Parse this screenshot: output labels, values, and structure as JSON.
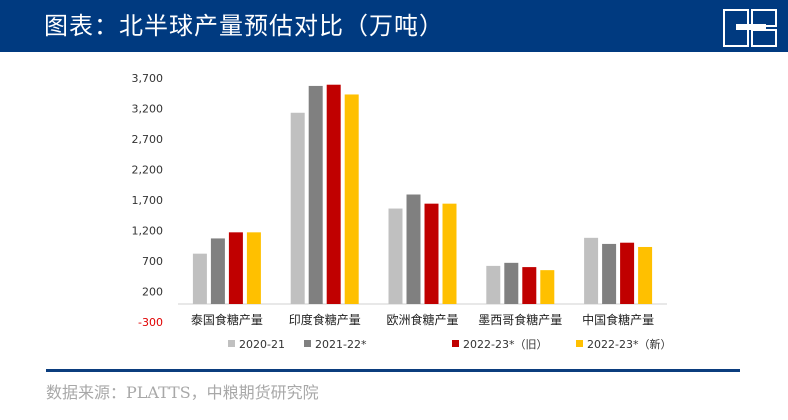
{
  "header": {
    "title": "图表：北半球产量预估对比（万吨）"
  },
  "source": {
    "text": "数据来源：PLATTS，中粮期货研究院"
  },
  "chart_data": {
    "type": "bar",
    "categories": [
      "泰国食糖产量",
      "印度食糖产量",
      "欧洲食糖产量",
      "墨西哥食糖产量",
      "中国食糖产量"
    ],
    "series": [
      {
        "name": "2020-21",
        "color": "#c0c0c0",
        "values": [
          820,
          3130,
          1560,
          620,
          1080
        ]
      },
      {
        "name": "2021-22*",
        "color": "#808080",
        "values": [
          1070,
          3570,
          1790,
          670,
          980
        ]
      },
      {
        "name": "2022-23*（旧）",
        "color": "#c00000",
        "values": [
          1170,
          3590,
          1640,
          600,
          1000
        ]
      },
      {
        "name": "2022-23*（新）",
        "color": "#ffc000",
        "values": [
          1170,
          3430,
          1640,
          550,
          930
        ]
      }
    ],
    "ylim": [
      -300,
      3700
    ],
    "yticks": [
      -300,
      200,
      700,
      1200,
      1700,
      2200,
      2700,
      3200,
      3700
    ],
    "ytick_labels": [
      "-300",
      "200",
      "700",
      "1,200",
      "1,700",
      "2,200",
      "2,700",
      "3,200",
      "3,700"
    ],
    "legend_position": "bottom",
    "grid": false
  }
}
